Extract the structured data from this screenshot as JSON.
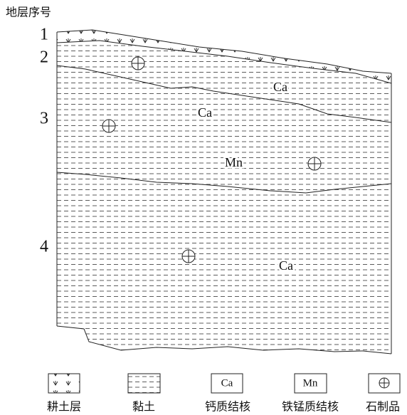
{
  "header": {
    "title": "地层序号"
  },
  "layers": [
    "1",
    "2",
    "3",
    "4"
  ],
  "annotations": [
    "Ca",
    "Ca",
    "Mn",
    "Ca"
  ],
  "legend": [
    {
      "label": "耕土层"
    },
    {
      "label": "黏土"
    },
    {
      "symbol": "Ca",
      "label": "钙质结核"
    },
    {
      "symbol": "Mn",
      "label": "铁锰质结核"
    },
    {
      "label": "石制品"
    }
  ]
}
